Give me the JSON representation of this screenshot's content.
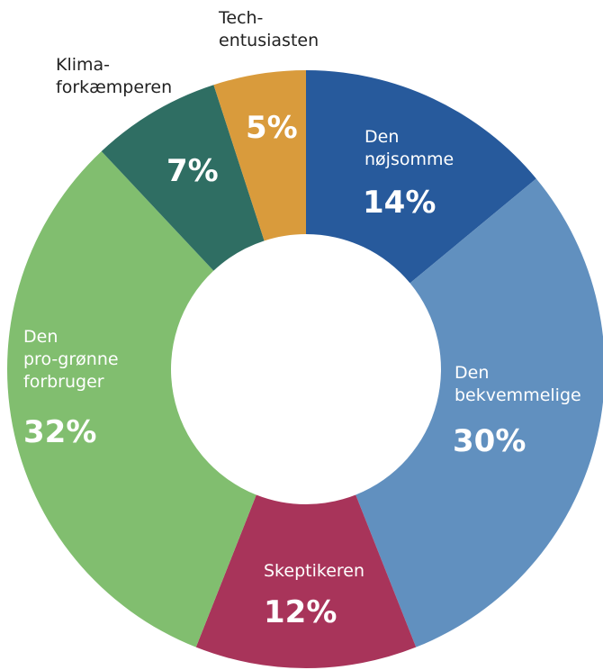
{
  "chart_data": {
    "type": "donut",
    "categories": [
      "Den\nnøjsomme",
      "Den\nbekvemmelige",
      "Skeptikeren",
      "Den\npro-grønne\nforbruger",
      "Klima-\nforkæmperen",
      "Tech-\nentusiasten"
    ],
    "values": [
      14,
      30,
      12,
      32,
      7,
      5
    ],
    "value_labels": [
      "14%",
      "30%",
      "12%",
      "32%",
      "7%",
      "5%"
    ],
    "colors": [
      "#275a9c",
      "#6190bf",
      "#a8345a",
      "#81be6f",
      "#2f6e63",
      "#d99b3c"
    ]
  }
}
